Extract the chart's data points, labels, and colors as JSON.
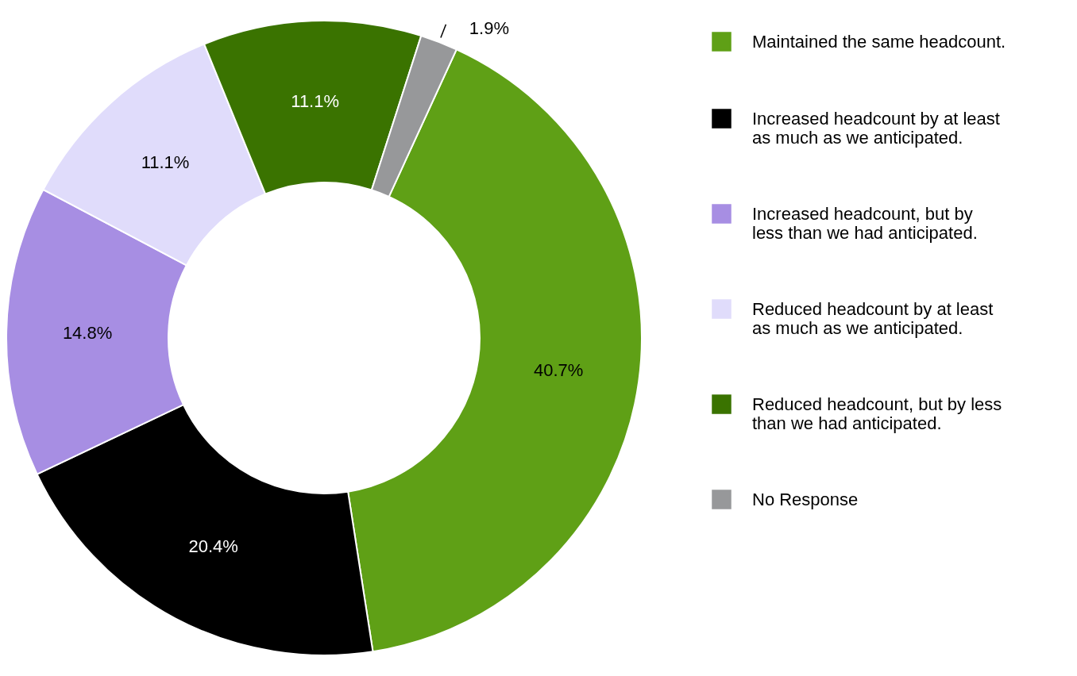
{
  "chart_data": {
    "type": "donut",
    "categories": [
      "Maintained the same headcount.",
      "Increased headcount by at least as much as we anticipated.",
      "Increased headcount, but by less than we had anticipated.",
      "Reduced headcount by at least as much as we anticipated.",
      "Reduced headcount, but by less than we had anticipated.",
      "No Response"
    ],
    "values": [
      40.7,
      20.4,
      14.8,
      11.1,
      11.1,
      1.9
    ],
    "colors": [
      "#5fa016",
      "#000000",
      "#a78ee3",
      "#e0dcfb",
      "#3a7300",
      "#97989a"
    ],
    "value_labels": [
      "40.7%",
      "20.4%",
      "14.8%",
      "11.1%",
      "11.1%",
      "1.9%"
    ],
    "legend": "right"
  }
}
